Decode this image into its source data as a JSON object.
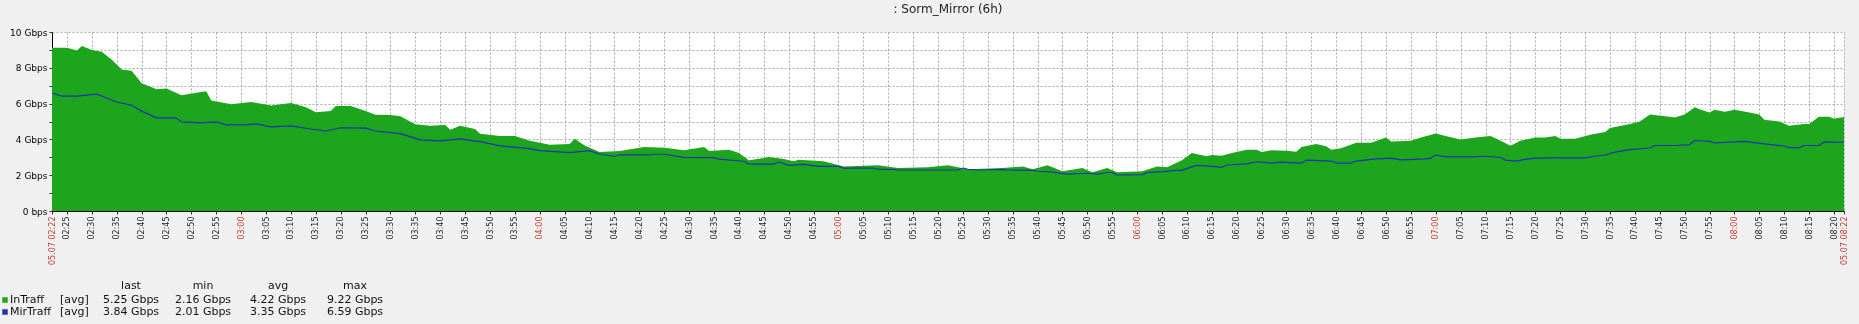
{
  "chart_data": {
    "type": "area",
    "title": ": Sorm_Mirror  (6h)",
    "xlim": [
      2.3667,
      8.3667
    ],
    "xticks": [
      {
        "value": 2.3667,
        "label": "05.07 02:22"
      },
      {
        "value": 2.4167,
        "label": "02:25"
      },
      {
        "value": 2.5,
        "label": "02:30"
      },
      {
        "value": 2.5833,
        "label": "02:35"
      },
      {
        "value": 2.6667,
        "label": "02:40"
      },
      {
        "value": 2.75,
        "label": "02:45"
      },
      {
        "value": 2.8333,
        "label": "02:50"
      },
      {
        "value": 2.9167,
        "label": "02:55"
      },
      {
        "value": 3,
        "label": "03:00"
      },
      {
        "value": 3.0833,
        "label": "03:05"
      },
      {
        "value": 3.1667,
        "label": "03:10"
      },
      {
        "value": 3.25,
        "label": "03:15"
      },
      {
        "value": 3.3333,
        "label": "03:20"
      },
      {
        "value": 3.4167,
        "label": "03:25"
      },
      {
        "value": 3.5,
        "label": "03:30"
      },
      {
        "value": 3.5833,
        "label": "03:35"
      },
      {
        "value": 3.6667,
        "label": "03:40"
      },
      {
        "value": 3.75,
        "label": "03:45"
      },
      {
        "value": 3.8333,
        "label": "03:50"
      },
      {
        "value": 3.9167,
        "label": "03:55"
      },
      {
        "value": 4,
        "label": "04:00"
      },
      {
        "value": 4.0833,
        "label": "04:05"
      },
      {
        "value": 4.1667,
        "label": "04:10"
      },
      {
        "value": 4.25,
        "label": "04:15"
      },
      {
        "value": 4.3333,
        "label": "04:20"
      },
      {
        "value": 4.4167,
        "label": "04:25"
      },
      {
        "value": 4.5,
        "label": "04:30"
      },
      {
        "value": 4.5833,
        "label": "04:35"
      },
      {
        "value": 4.6667,
        "label": "04:40"
      },
      {
        "value": 4.75,
        "label": "04:45"
      },
      {
        "value": 4.8333,
        "label": "04:50"
      },
      {
        "value": 4.9167,
        "label": "04:55"
      },
      {
        "value": 5,
        "label": "05:00"
      },
      {
        "value": 5.0833,
        "label": "05:05"
      },
      {
        "value": 5.1667,
        "label": "05:10"
      },
      {
        "value": 5.25,
        "label": "05:15"
      },
      {
        "value": 5.3333,
        "label": "05:20"
      },
      {
        "value": 5.4167,
        "label": "05:25"
      },
      {
        "value": 5.5,
        "label": "05:30"
      },
      {
        "value": 5.5833,
        "label": "05:35"
      },
      {
        "value": 5.6667,
        "label": "05:40"
      },
      {
        "value": 5.75,
        "label": "05:45"
      },
      {
        "value": 5.8333,
        "label": "05:50"
      },
      {
        "value": 5.9167,
        "label": "05:55"
      },
      {
        "value": 6,
        "label": "06:00"
      },
      {
        "value": 6.0833,
        "label": "06:05"
      },
      {
        "value": 6.1667,
        "label": "06:10"
      },
      {
        "value": 6.25,
        "label": "06:15"
      },
      {
        "value": 6.3333,
        "label": "06:20"
      },
      {
        "value": 6.4167,
        "label": "06:25"
      },
      {
        "value": 6.5,
        "label": "06:30"
      },
      {
        "value": 6.5833,
        "label": "06:35"
      },
      {
        "value": 6.6667,
        "label": "06:40"
      },
      {
        "value": 6.75,
        "label": "06:45"
      },
      {
        "value": 6.8333,
        "label": "06:50"
      },
      {
        "value": 6.9167,
        "label": "06:55"
      },
      {
        "value": 7,
        "label": "07:00"
      },
      {
        "value": 7.0833,
        "label": "07:05"
      },
      {
        "value": 7.1667,
        "label": "07:10"
      },
      {
        "value": 7.25,
        "label": "07:15"
      },
      {
        "value": 7.3333,
        "label": "07:20"
      },
      {
        "value": 7.4167,
        "label": "07:25"
      },
      {
        "value": 7.5,
        "label": "07:30"
      },
      {
        "value": 7.5833,
        "label": "07:35"
      },
      {
        "value": 7.6667,
        "label": "07:40"
      },
      {
        "value": 7.75,
        "label": "07:45"
      },
      {
        "value": 7.8333,
        "label": "07:50"
      },
      {
        "value": 7.9167,
        "label": "07:55"
      },
      {
        "value": 8,
        "label": "08:00"
      },
      {
        "value": 8.0833,
        "label": "08:05"
      },
      {
        "value": 8.1667,
        "label": "08:10"
      },
      {
        "value": 8.25,
        "label": "08:15"
      },
      {
        "value": 8.3333,
        "label": "08:20"
      },
      {
        "value": 8.3667,
        "label": "05.07 08:22"
      }
    ],
    "ylim": [
      0,
      10
    ],
    "yticks": [
      {
        "value": 0,
        "label": "0 bps"
      },
      {
        "value": 1,
        "label": null
      },
      {
        "value": 2,
        "label": "2 Gbps"
      },
      {
        "value": 3,
        "label": null
      },
      {
        "value": 4,
        "label": "4 Gbps"
      },
      {
        "value": 5,
        "label": null
      },
      {
        "value": 6,
        "label": "6 Gbps"
      },
      {
        "value": 7,
        "label": null
      },
      {
        "value": 8,
        "label": "8 Gbps"
      },
      {
        "value": 9,
        "label": null
      },
      {
        "value": 10,
        "label": "10 Gbps"
      }
    ],
    "grid": true,
    "legend": "bottom left",
    "annotations": [
      "last",
      "min",
      "avg",
      "max",
      "[avg]",
      "5.25 Gbps",
      "2.16 Gbps",
      "4.22 Gbps",
      "9.22 Gbps",
      "[avg]",
      "3.84 Gbps",
      "2.01 Gbps",
      "3.35 Gbps",
      "6.59 Gbps"
    ],
    "series": [
      {
        "name": "InTraff",
        "color": "#1ea51e",
        "x": [
          2.3667,
          2.417,
          2.45,
          2.467,
          2.5,
          2.533,
          2.567,
          2.6,
          2.633,
          2.667,
          2.717,
          2.75,
          2.8,
          2.85,
          2.883,
          2.9,
          2.967,
          3.033,
          3.1,
          3.167,
          3.217,
          3.25,
          3.3,
          3.317,
          3.367,
          3.417,
          3.45,
          3.5,
          3.533,
          3.583,
          3.633,
          3.683,
          3.7,
          3.733,
          3.783,
          3.8,
          3.867,
          3.917,
          3.967,
          4.033,
          4.1,
          4.117,
          4.15,
          4.2,
          4.267,
          4.35,
          4.417,
          4.483,
          4.55,
          4.567,
          4.633,
          4.667,
          4.7,
          4.767,
          4.817,
          4.85,
          4.867,
          4.95,
          5.017,
          5.133,
          5.2,
          5.3,
          5.367,
          5.433,
          5.55,
          5.617,
          5.65,
          5.7,
          5.75,
          5.817,
          5.85,
          5.9,
          5.933,
          6.017,
          6.067,
          6.1,
          6.15,
          6.183,
          6.233,
          6.25,
          6.283,
          6.317,
          6.367,
          6.4,
          6.417,
          6.45,
          6.5,
          6.533,
          6.55,
          6.6,
          6.633,
          6.65,
          6.683,
          6.733,
          6.783,
          6.833,
          6.85,
          6.917,
          6.95,
          7.0,
          7.033,
          7.083,
          7.133,
          7.183,
          7.217,
          7.25,
          7.283,
          7.333,
          7.367,
          7.4,
          7.417,
          7.467,
          7.517,
          7.567,
          7.583,
          7.65,
          7.683,
          7.717,
          7.783,
          7.8,
          7.833,
          7.867,
          7.883,
          7.917,
          7.933,
          7.967,
          8.0,
          8.05,
          8.083,
          8.1,
          8.15,
          8.183,
          8.233,
          8.25,
          8.283,
          8.317,
          8.333,
          8.3667
        ],
        "values": [
          9.12,
          9.12,
          8.96,
          9.22,
          9.0,
          8.9,
          8.45,
          7.9,
          7.83,
          7.13,
          6.8,
          6.84,
          6.46,
          6.6,
          6.69,
          6.18,
          5.96,
          6.09,
          5.9,
          6.04,
          5.8,
          5.51,
          5.58,
          5.87,
          5.87,
          5.58,
          5.38,
          5.36,
          5.29,
          4.85,
          4.76,
          4.81,
          4.54,
          4.76,
          4.58,
          4.32,
          4.19,
          4.19,
          3.92,
          3.7,
          3.75,
          4.03,
          3.66,
          3.3,
          3.35,
          3.58,
          3.53,
          3.4,
          3.58,
          3.35,
          3.42,
          3.24,
          2.83,
          3.01,
          2.9,
          2.78,
          2.87,
          2.78,
          2.49,
          2.55,
          2.4,
          2.44,
          2.55,
          2.33,
          2.4,
          2.49,
          2.33,
          2.55,
          2.22,
          2.4,
          2.17,
          2.4,
          2.16,
          2.22,
          2.49,
          2.44,
          2.83,
          3.24,
          3.06,
          3.13,
          3.09,
          3.24,
          3.42,
          3.42,
          3.29,
          3.4,
          3.36,
          3.31,
          3.58,
          3.74,
          3.62,
          3.42,
          3.51,
          3.81,
          3.81,
          4.1,
          3.88,
          3.92,
          4.1,
          4.33,
          4.19,
          3.99,
          4.1,
          4.19,
          3.92,
          3.65,
          3.92,
          4.1,
          4.1,
          4.19,
          4.03,
          4.03,
          4.26,
          4.42,
          4.64,
          4.86,
          5.0,
          5.39,
          5.27,
          5.23,
          5.39,
          5.8,
          5.69,
          5.5,
          5.66,
          5.55,
          5.66,
          5.5,
          5.39,
          5.1,
          5.0,
          4.76,
          4.86,
          4.86,
          5.27,
          5.27,
          5.16,
          5.25
        ]
      },
      {
        "name": "MirTraff",
        "type": "line",
        "color": "#2233b0",
        "x": [
          2.3667,
          2.4,
          2.45,
          2.517,
          2.55,
          2.583,
          2.633,
          2.667,
          2.717,
          2.783,
          2.8,
          2.867,
          2.917,
          2.95,
          3.017,
          3.05,
          3.1,
          3.167,
          3.233,
          3.283,
          3.333,
          3.417,
          3.45,
          3.533,
          3.6,
          3.667,
          3.733,
          3.8,
          3.867,
          3.967,
          4.0,
          4.1,
          4.167,
          4.2,
          4.25,
          4.267,
          4.367,
          4.383,
          4.417,
          4.483,
          4.583,
          4.6,
          4.683,
          4.7,
          4.783,
          4.8,
          4.833,
          4.883,
          4.933,
          5.0,
          5.017,
          5.117,
          5.133,
          5.183,
          5.2,
          5.4,
          5.417,
          5.433,
          5.483,
          5.55,
          5.567,
          5.65,
          5.667,
          5.717,
          5.767,
          5.833,
          5.867,
          5.9,
          5.917,
          5.933,
          6.017,
          6.033,
          6.083,
          6.133,
          6.15,
          6.167,
          6.2,
          6.25,
          6.283,
          6.3,
          6.367,
          6.4,
          6.45,
          6.483,
          6.55,
          6.567,
          6.65,
          6.667,
          6.717,
          6.733,
          6.8,
          6.85,
          6.883,
          6.967,
          6.983,
          7.0,
          7.033,
          7.117,
          7.167,
          7.217,
          7.233,
          7.267,
          7.3,
          7.333,
          7.4,
          7.5,
          7.533,
          7.567,
          7.6,
          7.65,
          7.717,
          7.733,
          7.8,
          7.85,
          7.867,
          7.917,
          7.933,
          8.033,
          8.1,
          8.167,
          8.183,
          8.217,
          8.233,
          8.283,
          8.3,
          8.3667
        ],
        "values": [
          6.59,
          6.42,
          6.42,
          6.53,
          6.31,
          6.09,
          5.91,
          5.58,
          5.2,
          5.2,
          4.98,
          4.92,
          4.98,
          4.81,
          4.81,
          4.87,
          4.7,
          4.76,
          4.58,
          4.47,
          4.65,
          4.63,
          4.47,
          4.32,
          3.97,
          3.92,
          4.03,
          3.88,
          3.64,
          3.48,
          3.37,
          3.26,
          3.37,
          3.17,
          3.06,
          3.13,
          3.13,
          3.17,
          3.17,
          3.0,
          2.98,
          2.9,
          2.78,
          2.62,
          2.62,
          2.74,
          2.55,
          2.6,
          2.49,
          2.49,
          2.4,
          2.4,
          2.33,
          2.33,
          2.29,
          2.29,
          2.4,
          2.33,
          2.29,
          2.33,
          2.29,
          2.27,
          2.22,
          2.17,
          2.06,
          2.11,
          2.06,
          2.15,
          2.15,
          2.01,
          2.03,
          2.15,
          2.2,
          2.27,
          2.27,
          2.38,
          2.55,
          2.49,
          2.44,
          2.57,
          2.63,
          2.75,
          2.68,
          2.73,
          2.68,
          2.84,
          2.79,
          2.68,
          2.68,
          2.79,
          2.91,
          2.95,
          2.86,
          2.91,
          2.95,
          3.13,
          3.02,
          3.02,
          3.06,
          2.99,
          2.84,
          2.79,
          2.88,
          2.95,
          2.97,
          2.97,
          3.06,
          3.13,
          3.29,
          3.43,
          3.52,
          3.66,
          3.66,
          3.71,
          3.94,
          3.89,
          3.8,
          3.89,
          3.75,
          3.63,
          3.54,
          3.54,
          3.66,
          3.66,
          3.86,
          3.84
        ]
      }
    ]
  }
}
